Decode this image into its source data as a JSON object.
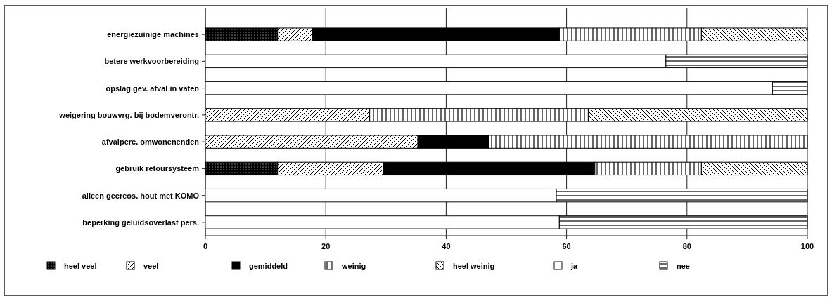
{
  "chart_data": {
    "type": "bar",
    "orientation": "horizontal",
    "stacked": true,
    "categories": [
      "energiezuinige machines",
      "betere werkvoorbereiding",
      "opslag gev. afval in vaten",
      "weigering bouwvrg. bij bodemverontr.",
      "afvalperc. omwonenenden",
      "gebruik retoursysteem",
      "alleen gecreos. hout met KOMO",
      "beperking geluidsoverlast pers."
    ],
    "series": [
      {
        "name": "heel veel",
        "color": "#000000",
        "values": [
          12,
          null,
          null,
          null,
          null,
          12,
          null,
          null
        ]
      },
      {
        "name": "veel",
        "color": "#000000",
        "values": [
          5.7,
          null,
          null,
          27.3,
          35.3,
          17.5,
          null,
          null
        ]
      },
      {
        "name": "gemiddeld",
        "color": "#000000",
        "values": [
          41.1,
          null,
          null,
          null,
          11.8,
          35.2,
          null,
          null
        ]
      },
      {
        "name": "weinig",
        "color": "#000000",
        "values": [
          23.6,
          null,
          null,
          36.3,
          52.9,
          17.7,
          null,
          null
        ]
      },
      {
        "name": "heel weinig",
        "color": "#000000",
        "values": [
          17.6,
          null,
          null,
          36.4,
          null,
          17.6,
          null,
          null
        ]
      },
      {
        "name": "ja",
        "color": "#ffffff",
        "values": [
          null,
          76.5,
          94.2,
          null,
          null,
          null,
          58.3,
          58.8
        ]
      },
      {
        "name": "nee",
        "color": "#000000",
        "values": [
          null,
          23.5,
          5.8,
          null,
          null,
          null,
          41.7,
          41.2
        ]
      }
    ],
    "xlim": [
      0,
      100
    ],
    "xticks": [
      0,
      20,
      40,
      60,
      80,
      100
    ],
    "grid": "x",
    "legend": "bottom"
  }
}
